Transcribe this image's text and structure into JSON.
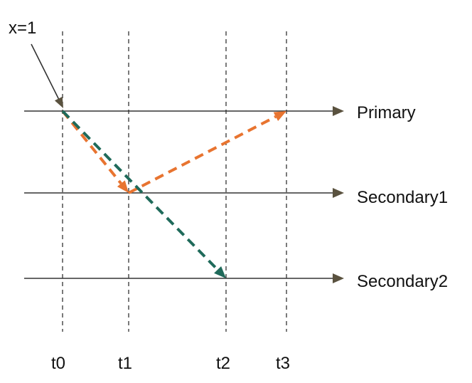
{
  "diagram": {
    "annotation": "x=1",
    "nodes": [
      "Primary",
      "Secondary1",
      "Secondary2"
    ],
    "times": [
      "t0",
      "t1",
      "t2",
      "t3"
    ],
    "messages": [
      {
        "from_node": "Primary",
        "from_time": "t0",
        "to_node": "Secondary1",
        "to_time": "t1",
        "color": "#e87430"
      },
      {
        "from_node": "Secondary1",
        "from_time": "t1",
        "to_node": "Primary",
        "to_time": "t3",
        "color": "#e87430"
      },
      {
        "from_node": "Primary",
        "from_time": "t0",
        "to_node": "Secondary2",
        "to_time": "t2",
        "color": "#1f6a5a"
      }
    ],
    "colors": {
      "timeline": "#333333",
      "arrowhead": "#5a523f",
      "orange": "#e87430",
      "teal": "#1f6a5a"
    }
  }
}
